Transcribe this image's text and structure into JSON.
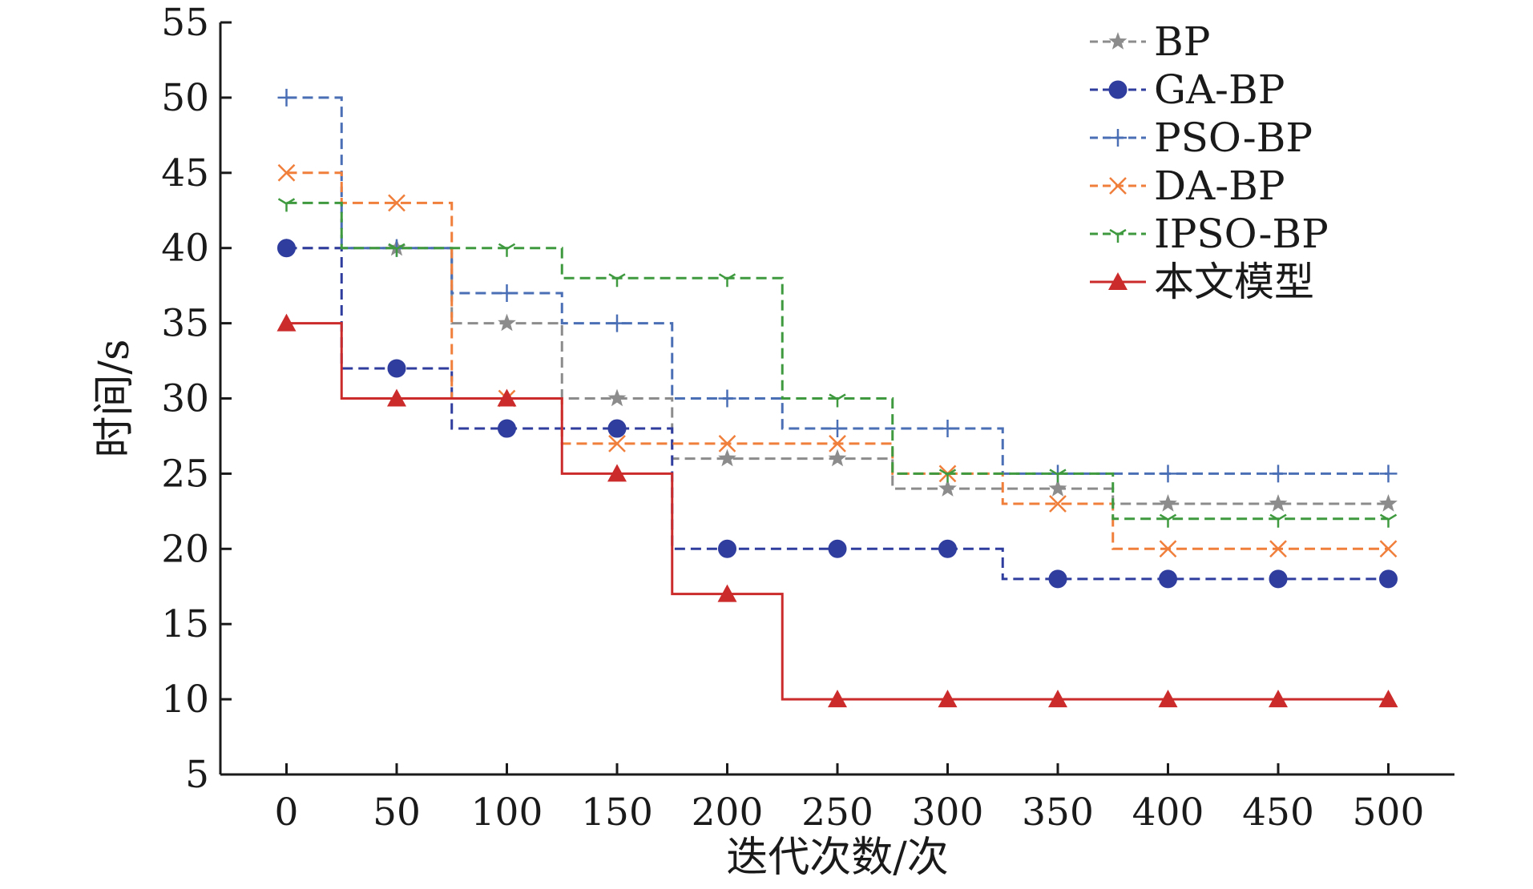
{
  "chart_data": {
    "type": "line",
    "step": "mid",
    "title": "",
    "xlabel": "迭代次数/次",
    "ylabel": "时间/s",
    "xlim": [
      -30,
      530
    ],
    "ylim": [
      5,
      55
    ],
    "x": [
      0,
      50,
      100,
      150,
      200,
      250,
      300,
      350,
      400,
      450,
      500
    ],
    "x_tick_labels": [
      "0",
      "50",
      "100",
      "150",
      "200",
      "250",
      "300",
      "350",
      "400",
      "450",
      "500"
    ],
    "y_ticks": [
      5,
      10,
      15,
      20,
      25,
      30,
      35,
      40,
      45,
      50,
      55
    ],
    "y_tick_labels": [
      "5",
      "10",
      "15",
      "20",
      "25",
      "30",
      "35",
      "40",
      "45",
      "50",
      "55"
    ],
    "grid": false,
    "legend_position": "top-right",
    "series": [
      {
        "name": "BP",
        "values": [
          40,
          40,
          35,
          30,
          26,
          26,
          24,
          24,
          23,
          23,
          23
        ],
        "color": "#8c8c8c",
        "marker": "star",
        "dash": true
      },
      {
        "name": "GA-BP",
        "values": [
          40,
          32,
          28,
          28,
          20,
          20,
          20,
          18,
          18,
          18,
          18
        ],
        "color": "#2f3d9e",
        "marker": "circle",
        "dash": true
      },
      {
        "name": "PSO-BP",
        "values": [
          50,
          40,
          37,
          35,
          30,
          28,
          28,
          25,
          25,
          25,
          25
        ],
        "color": "#4a6fb5",
        "marker": "plus",
        "dash": true
      },
      {
        "name": "DA-BP",
        "values": [
          45,
          43,
          30,
          27,
          27,
          27,
          25,
          23,
          20,
          20,
          20
        ],
        "color": "#f07f3c",
        "marker": "x",
        "dash": true
      },
      {
        "name": "IPSO-BP",
        "values": [
          43,
          40,
          40,
          38,
          38,
          30,
          25,
          25,
          22,
          22,
          22
        ],
        "color": "#3f9a3f",
        "marker": "tri",
        "dash": true
      },
      {
        "name": "本文模型",
        "values": [
          35,
          30,
          30,
          25,
          17,
          10,
          10,
          10,
          10,
          10,
          10
        ],
        "color": "#cc2b2b",
        "marker": "triangle",
        "dash": false
      }
    ]
  }
}
